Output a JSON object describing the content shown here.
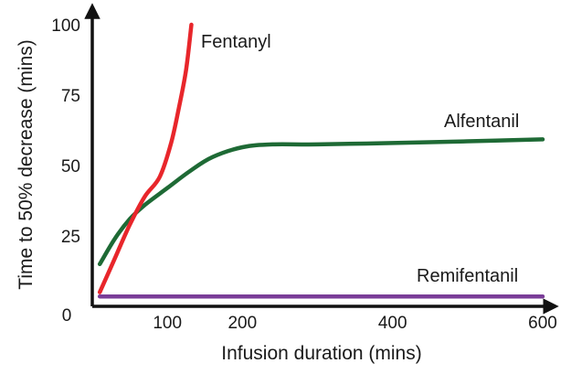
{
  "chart_data": {
    "type": "line",
    "xlabel": "Infusion duration (mins)",
    "ylabel": "Time to 50% decrease (mins)",
    "xlim": [
      0,
      600
    ],
    "ylim": [
      0,
      100
    ],
    "x_ticks": [
      "100",
      "200",
      "400",
      "600"
    ],
    "x_tick_values": [
      100,
      200,
      400,
      600
    ],
    "y_ticks": [
      "25",
      "50",
      "75",
      "100"
    ],
    "y_tick_values": [
      25,
      50,
      75,
      100
    ],
    "origin_label": "0",
    "grid": false,
    "legend": "inline labels",
    "series": [
      {
        "name": "Fentanyl",
        "color": "#e8262b",
        "points": [
          [
            10,
            5
          ],
          [
            30,
            17
          ],
          [
            50,
            29
          ],
          [
            70,
            39
          ],
          [
            90,
            46
          ],
          [
            105,
            58
          ],
          [
            115,
            70
          ],
          [
            125,
            84
          ],
          [
            132,
            100
          ]
        ]
      },
      {
        "name": "Alfentanil",
        "color": "#1e6a35",
        "points": [
          [
            10,
            15
          ],
          [
            30,
            24
          ],
          [
            50,
            31
          ],
          [
            70,
            36
          ],
          [
            100,
            42
          ],
          [
            130,
            48
          ],
          [
            160,
            53
          ],
          [
            200,
            56.5
          ],
          [
            240,
            57.5
          ],
          [
            300,
            57.5
          ],
          [
            400,
            58
          ],
          [
            500,
            58.6
          ],
          [
            600,
            59.3
          ]
        ]
      },
      {
        "name": "Remifentanil",
        "color": "#7a3d98",
        "points": [
          [
            10,
            3.5
          ],
          [
            100,
            3.5
          ],
          [
            200,
            3.5
          ],
          [
            400,
            3.5
          ],
          [
            600,
            3.5
          ]
        ]
      }
    ]
  }
}
